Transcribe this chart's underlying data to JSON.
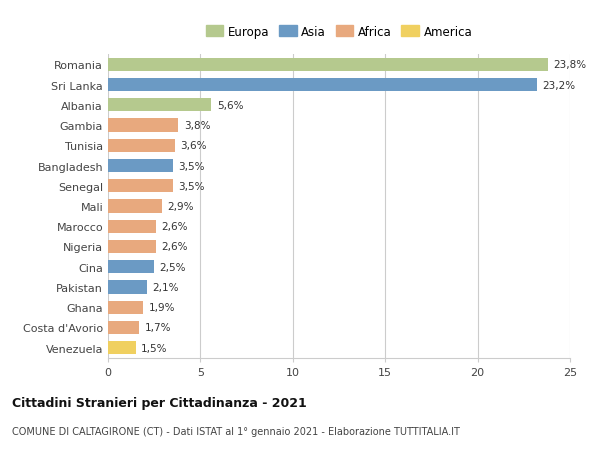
{
  "countries": [
    "Romania",
    "Sri Lanka",
    "Albania",
    "Gambia",
    "Tunisia",
    "Bangladesh",
    "Senegal",
    "Mali",
    "Marocco",
    "Nigeria",
    "Cina",
    "Pakistan",
    "Ghana",
    "Costa d'Avorio",
    "Venezuela"
  ],
  "values": [
    23.8,
    23.2,
    5.6,
    3.8,
    3.6,
    3.5,
    3.5,
    2.9,
    2.6,
    2.6,
    2.5,
    2.1,
    1.9,
    1.7,
    1.5
  ],
  "labels": [
    "23,8%",
    "23,2%",
    "5,6%",
    "3,8%",
    "3,6%",
    "3,5%",
    "3,5%",
    "2,9%",
    "2,6%",
    "2,6%",
    "2,5%",
    "2,1%",
    "1,9%",
    "1,7%",
    "1,5%"
  ],
  "continents": [
    "Europa",
    "Asia",
    "Europa",
    "Africa",
    "Africa",
    "Asia",
    "Africa",
    "Africa",
    "Africa",
    "Africa",
    "Asia",
    "Asia",
    "Africa",
    "Africa",
    "America"
  ],
  "colors": {
    "Europa": "#b5c98e",
    "Asia": "#6b9ac4",
    "Africa": "#e8a97e",
    "America": "#f0d060"
  },
  "legend_order": [
    "Europa",
    "Asia",
    "Africa",
    "America"
  ],
  "xlim": [
    0,
    25
  ],
  "xticks": [
    0,
    5,
    10,
    15,
    20,
    25
  ],
  "title": "Cittadini Stranieri per Cittadinanza - 2021",
  "subtitle": "COMUNE DI CALTAGIRONE (CT) - Dati ISTAT al 1° gennaio 2021 - Elaborazione TUTTITALIA.IT",
  "background_color": "#ffffff",
  "grid_color": "#cccccc"
}
